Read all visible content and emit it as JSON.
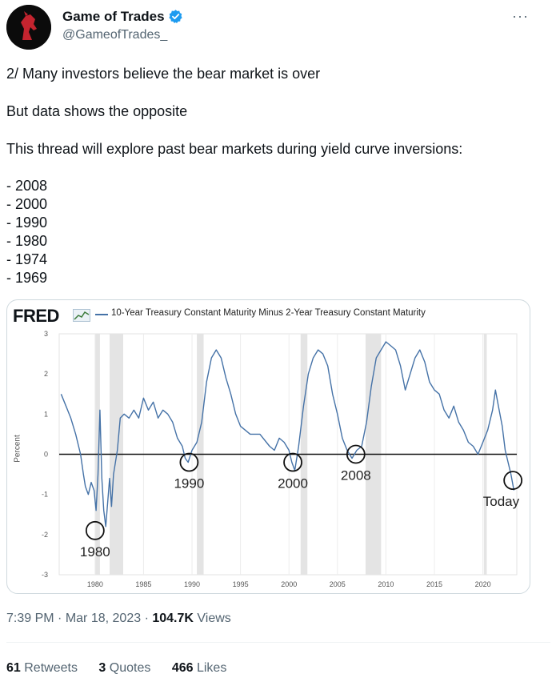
{
  "author": {
    "name": "Game of Trades",
    "handle": "@GameofTrades_"
  },
  "tweet": {
    "lines": [
      "2/ Many investors believe the bear market is over",
      "But data shows the opposite",
      "This thread will explore past bear markets during yield curve inversions:",
      "- 2008",
      "- 2000",
      "- 1990",
      "- 1980",
      "- 1974",
      "- 1969"
    ]
  },
  "chart": {
    "logo": "FRED",
    "legend": "10-Year Treasury Constant Maturity Minus 2-Year Treasury Constant Maturity",
    "ylabel": "Percent"
  },
  "chart_data": {
    "type": "line",
    "title": "10-Year Treasury Constant Maturity Minus 2-Year Treasury Constant Maturity",
    "ylabel": "Percent",
    "xlabel": "",
    "ylim": [
      -3,
      3
    ],
    "xlim": [
      1976.3,
      2023.5
    ],
    "y_ticks": [
      3,
      2,
      1,
      0,
      -1,
      -2,
      -3
    ],
    "x_ticks": [
      1980,
      1985,
      1990,
      1995,
      2000,
      2005,
      2010,
      2015,
      2020
    ],
    "grid": "vertical",
    "legend_position": "top",
    "series_color": "#4572a7",
    "recessions": [
      [
        1980.0,
        1980.5
      ],
      [
        1981.5,
        1982.9
      ],
      [
        1990.5,
        1991.2
      ],
      [
        2001.2,
        2001.9
      ],
      [
        2007.9,
        2009.5
      ],
      [
        2020.1,
        2020.4
      ]
    ],
    "series": [
      {
        "x": [
          1976.5,
          1977.0,
          1977.5,
          1978.0,
          1978.5,
          1978.8,
          1979.0,
          1979.3,
          1979.6,
          1979.9,
          1980.1,
          1980.3,
          1980.5,
          1980.7,
          1980.9,
          1981.1,
          1981.3,
          1981.5,
          1981.7,
          1981.9,
          1982.1,
          1982.3,
          1982.6,
          1983.0,
          1983.5,
          1984.0,
          1984.5,
          1985.0,
          1985.5,
          1986.0,
          1986.5,
          1987.0,
          1987.5,
          1988.0,
          1988.5,
          1989.0,
          1989.3,
          1989.6,
          1990.0,
          1990.5,
          1991.0,
          1991.5,
          1992.0,
          1992.5,
          1993.0,
          1993.5,
          1994.0,
          1994.5,
          1995.0,
          1995.5,
          1996.0,
          1997.0,
          1998.0,
          1998.5,
          1999.0,
          1999.5,
          2000.0,
          2000.3,
          2000.6,
          2001.0,
          2001.5,
          2002.0,
          2002.5,
          2003.0,
          2003.5,
          2004.0,
          2004.5,
          2005.0,
          2005.5,
          2006.0,
          2006.5,
          2007.0,
          2007.5,
          2008.0,
          2008.5,
          2009.0,
          2009.5,
          2010.0,
          2010.5,
          2011.0,
          2011.5,
          2012.0,
          2013.0,
          2013.5,
          2014.0,
          2014.5,
          2015.0,
          2015.5,
          2016.0,
          2016.5,
          2017.0,
          2017.5,
          2018.0,
          2018.5,
          2019.0,
          2019.5,
          2020.0,
          2020.5,
          2021.0,
          2021.3,
          2021.6,
          2022.0,
          2022.3,
          2022.6,
          2022.9,
          2023.2
        ],
        "y": [
          1.5,
          1.2,
          0.9,
          0.5,
          0.0,
          -0.5,
          -0.8,
          -1.0,
          -0.7,
          -0.9,
          -1.4,
          -0.5,
          1.1,
          -0.6,
          -1.4,
          -1.8,
          -1.2,
          -0.6,
          -1.3,
          -0.5,
          -0.2,
          0.1,
          0.9,
          1.0,
          0.9,
          1.1,
          0.9,
          1.4,
          1.1,
          1.3,
          0.9,
          1.1,
          1.0,
          0.8,
          0.4,
          0.2,
          -0.1,
          -0.2,
          0.1,
          0.3,
          0.8,
          1.8,
          2.4,
          2.6,
          2.4,
          1.9,
          1.5,
          1.0,
          0.7,
          0.6,
          0.5,
          0.5,
          0.2,
          0.1,
          0.4,
          0.3,
          0.1,
          -0.2,
          -0.4,
          0.2,
          1.2,
          2.0,
          2.4,
          2.6,
          2.5,
          2.2,
          1.5,
          1.0,
          0.4,
          0.1,
          -0.1,
          0.1,
          0.2,
          0.8,
          1.7,
          2.4,
          2.6,
          2.8,
          2.7,
          2.6,
          2.2,
          1.6,
          2.4,
          2.6,
          2.3,
          1.8,
          1.6,
          1.5,
          1.1,
          0.9,
          1.2,
          0.8,
          0.6,
          0.3,
          0.2,
          0.0,
          0.3,
          0.6,
          1.1,
          1.6,
          1.2,
          0.7,
          0.1,
          -0.2,
          -0.5,
          -0.9
        ]
      }
    ],
    "annotations": [
      {
        "label": "1980",
        "x": 1980.0,
        "y": -1.9
      },
      {
        "label": "1990",
        "x": 1989.7,
        "y": -0.2
      },
      {
        "label": "2000",
        "x": 2000.4,
        "y": -0.2
      },
      {
        "label": "2008",
        "x": 2006.9,
        "y": 0.0
      },
      {
        "label": "Today",
        "x": 2023.1,
        "y": -0.65
      }
    ]
  },
  "meta": {
    "time": "7:39 PM",
    "date": "Mar 18, 2023",
    "views_count": "104.7K",
    "views_label": "Views"
  },
  "stats": {
    "retweets_count": "61",
    "retweets_label": "Retweets",
    "quotes_count": "3",
    "quotes_label": "Quotes",
    "likes_count": "466",
    "likes_label": "Likes"
  }
}
